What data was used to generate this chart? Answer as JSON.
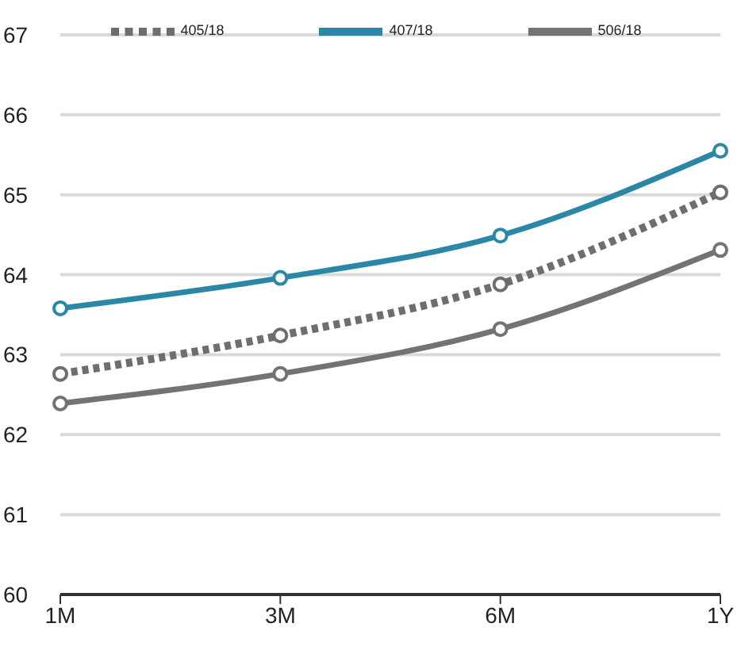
{
  "chart_data": {
    "type": "line",
    "categories": [
      "1M",
      "3M",
      "6M",
      "1Y"
    ],
    "series": [
      {
        "name": "407/18",
        "color": "#2a87a5",
        "values": [
          63.58,
          63.96,
          64.49,
          65.55
        ],
        "line_style": "solid"
      },
      {
        "name": "506/18",
        "color": "#737373",
        "values": [
          62.39,
          62.76,
          63.32,
          64.31
        ],
        "line_style": "solid"
      },
      {
        "name": "405/18",
        "color": "#6e6e6e",
        "values": [
          62.76,
          63.24,
          63.88,
          65.03
        ],
        "line_style": "dotted"
      }
    ],
    "ylim": [
      60,
      67
    ],
    "yticks": [
      60,
      61,
      62,
      63,
      64,
      65,
      66,
      67
    ],
    "grid": "y",
    "legend": "top",
    "marker": "circle"
  }
}
